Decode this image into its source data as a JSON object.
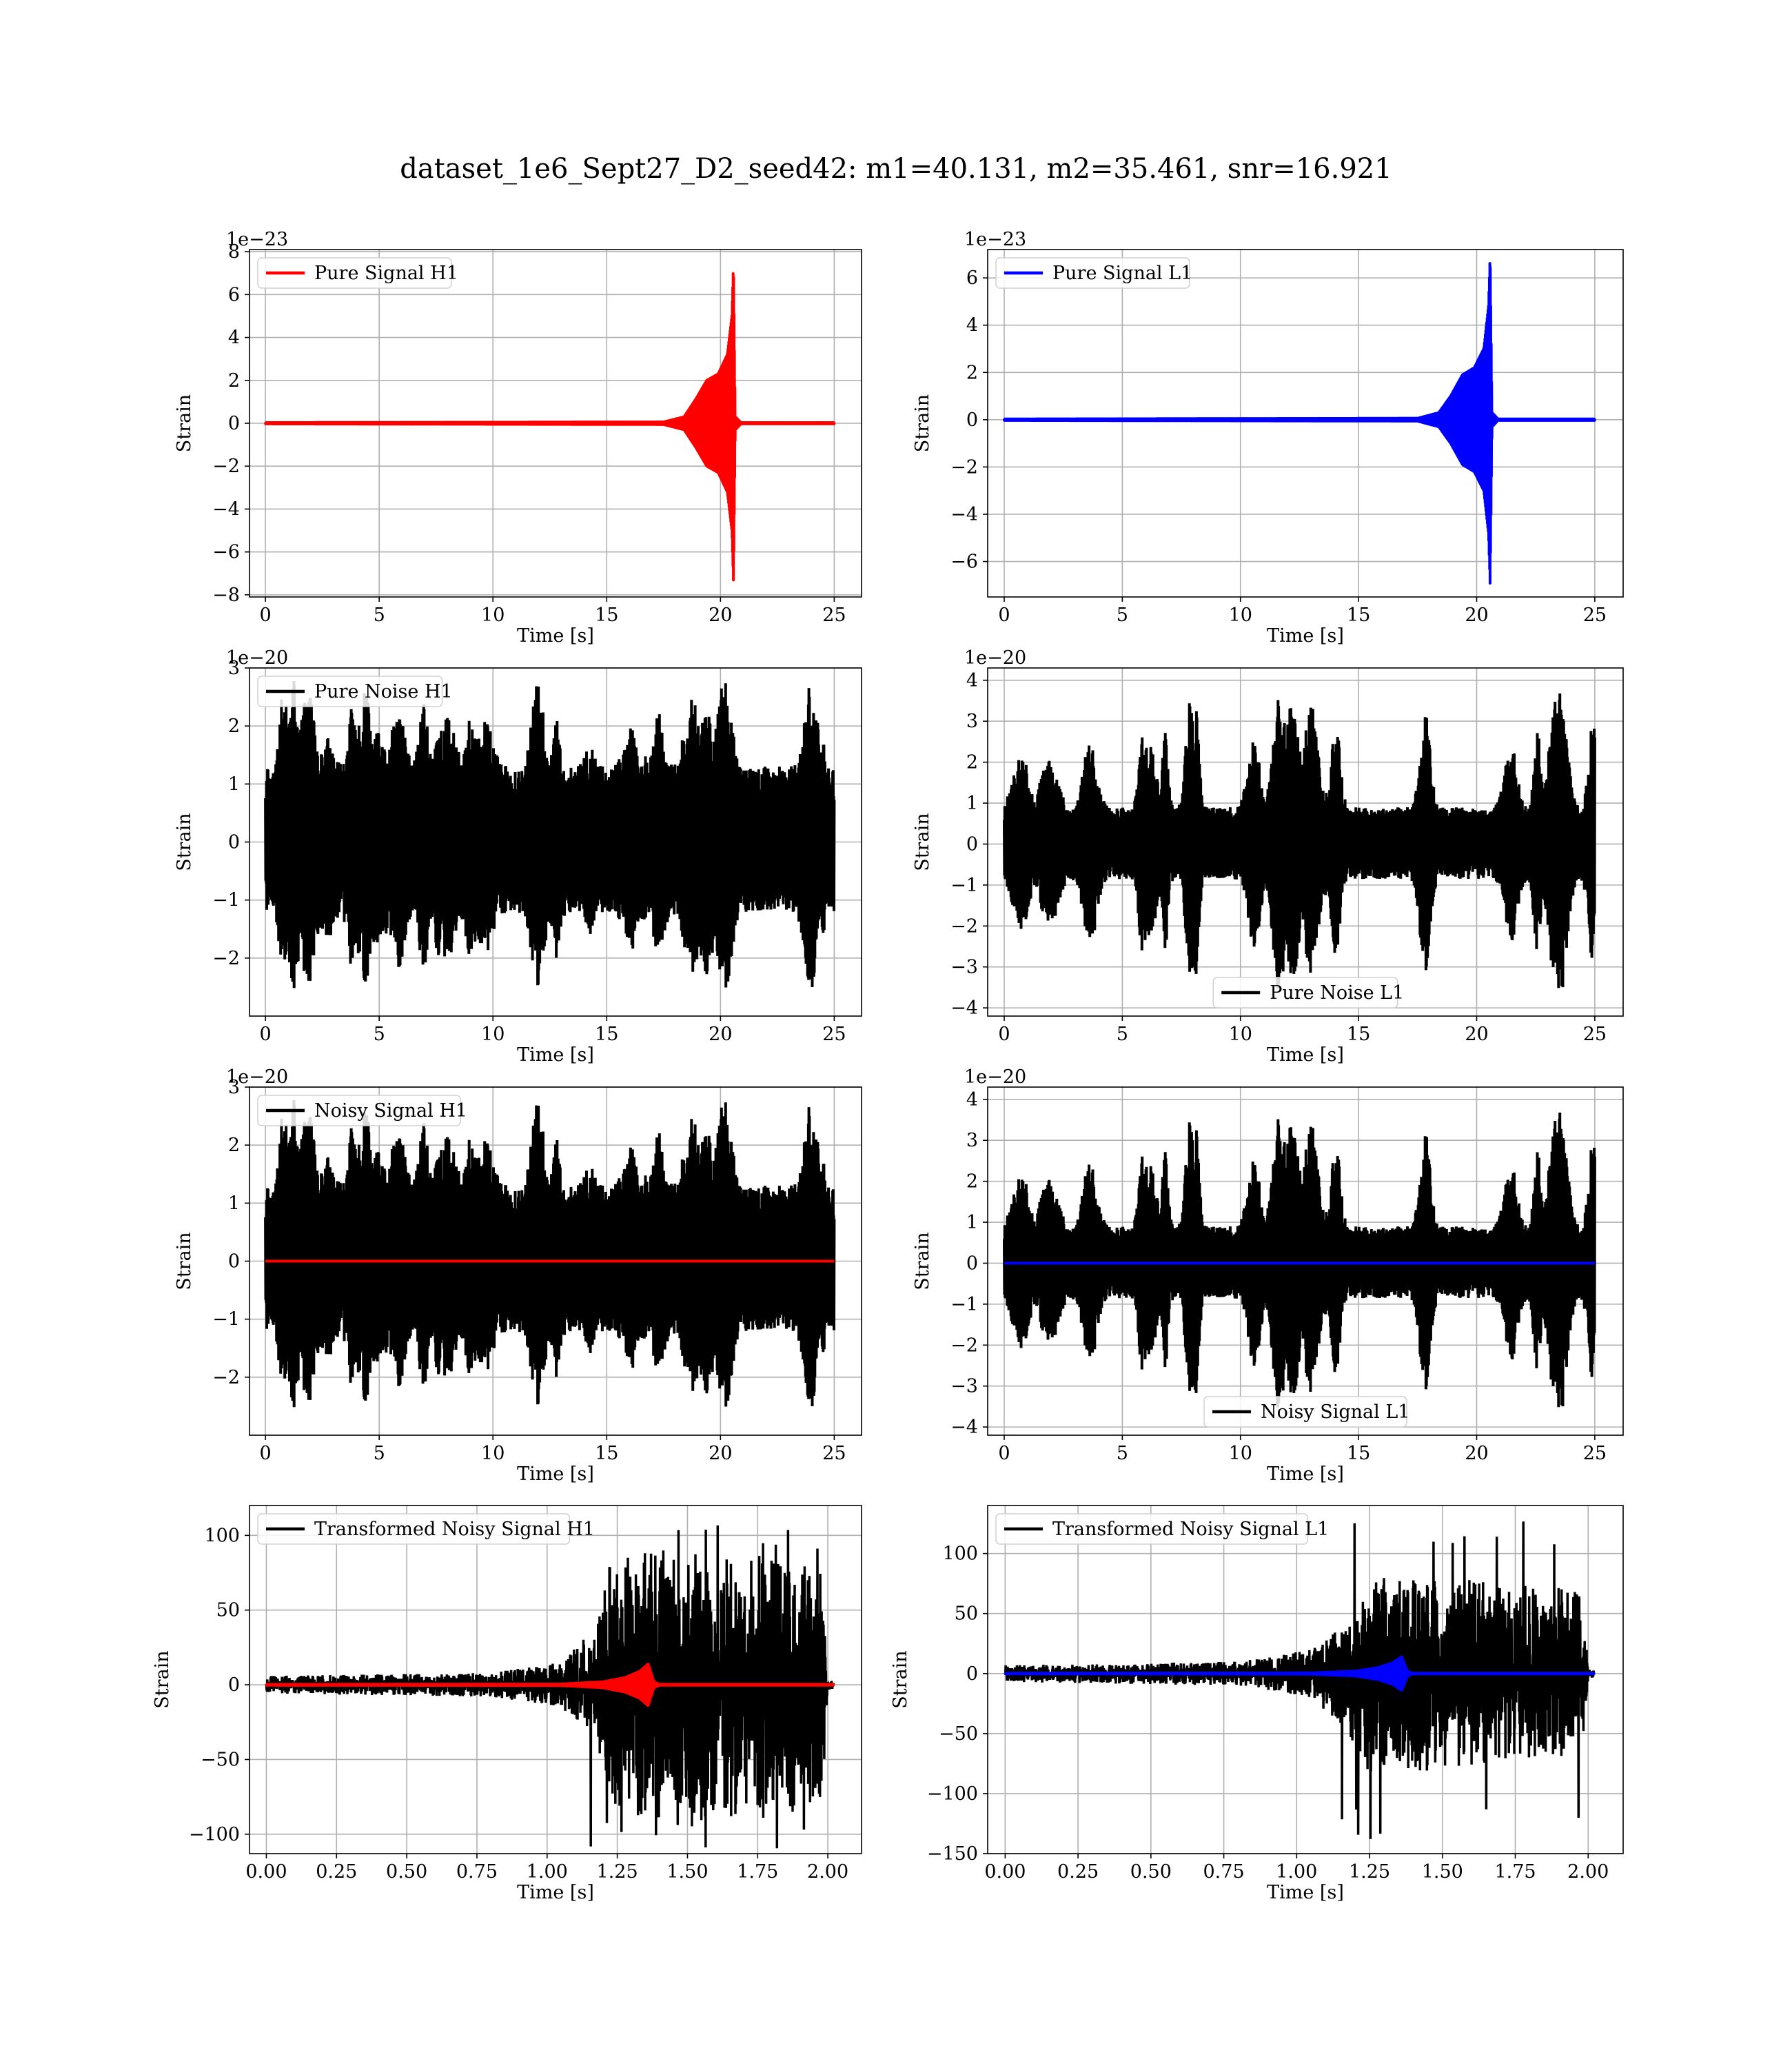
{
  "suptitle": "dataset_1e6_Sept27_D2_seed42: m1=40.131, m2=35.461, snr=16.921",
  "colors": {
    "signal_h1": "#ff0000",
    "signal_l1": "#0000ff",
    "noise": "#000000",
    "grid": "#b0b0b0"
  },
  "chart_data": [
    {
      "type": "line",
      "panel": "Pure Signal H1",
      "xlabel": "Time [s]",
      "ylabel": "Strain",
      "offset_text": "1e−23",
      "xlim": [
        -0.7,
        26.2
      ],
      "ylim": [
        -8.1,
        8.1
      ],
      "xticks": [
        0,
        5,
        10,
        15,
        20,
        25
      ],
      "xtick_labels": [
        "0",
        "5",
        "10",
        "15",
        "20",
        "25"
      ],
      "yticks": [
        -8,
        -6,
        -4,
        -2,
        0,
        2,
        4,
        6,
        8
      ],
      "ytick_labels": [
        "−8",
        "−6",
        "−4",
        "−2",
        "0",
        "2",
        "4",
        "6",
        "8"
      ],
      "legend": {
        "label": "Pure Signal H1",
        "position": "upper left"
      },
      "series": [
        {
          "name": "Pure Signal H1",
          "color": "#ff0000",
          "kind": "chirp",
          "envelope": [
            [
              0,
              0.03
            ],
            [
              17.5,
              0.06
            ],
            [
              18.4,
              0.3
            ],
            [
              18.9,
              1.1
            ],
            [
              19.4,
              2.0
            ],
            [
              19.9,
              2.3
            ],
            [
              20.3,
              3.2
            ],
            [
              20.5,
              5.0
            ],
            [
              20.57,
              7.4
            ],
            [
              20.65,
              0.3
            ],
            [
              20.9,
              0.03
            ],
            [
              25,
              0.03
            ]
          ],
          "x_range": [
            0,
            25
          ]
        }
      ]
    },
    {
      "type": "line",
      "panel": "Pure Signal L1",
      "xlabel": "Time [s]",
      "ylabel": "Strain",
      "offset_text": "1e−23",
      "xlim": [
        -0.7,
        26.2
      ],
      "ylim": [
        -7.5,
        7.2
      ],
      "xticks": [
        0,
        5,
        10,
        15,
        20,
        25
      ],
      "xtick_labels": [
        "0",
        "5",
        "10",
        "15",
        "20",
        "25"
      ],
      "yticks": [
        -6,
        -4,
        -2,
        0,
        2,
        4,
        6
      ],
      "ytick_labels": [
        "−6",
        "−4",
        "−2",
        "0",
        "2",
        "4",
        "6"
      ],
      "legend": {
        "label": "Pure Signal L1",
        "position": "upper left"
      },
      "series": [
        {
          "name": "Pure Signal L1",
          "color": "#0000ff",
          "kind": "chirp",
          "envelope": [
            [
              0,
              0.03
            ],
            [
              17.5,
              0.06
            ],
            [
              18.4,
              0.3
            ],
            [
              18.9,
              1.0
            ],
            [
              19.4,
              1.9
            ],
            [
              19.9,
              2.2
            ],
            [
              20.3,
              3.0
            ],
            [
              20.5,
              4.8
            ],
            [
              20.57,
              7.0
            ],
            [
              20.65,
              0.3
            ],
            [
              20.9,
              0.03
            ],
            [
              25,
              0.03
            ]
          ],
          "x_range": [
            0,
            25
          ]
        }
      ]
    },
    {
      "type": "line",
      "panel": "Pure Noise H1",
      "xlabel": "Time [s]",
      "ylabel": "Strain",
      "offset_text": "1e−20",
      "xlim": [
        -0.7,
        26.2
      ],
      "ylim": [
        -3.0,
        3.0
      ],
      "xticks": [
        0,
        5,
        10,
        15,
        20,
        25
      ],
      "xtick_labels": [
        "0",
        "5",
        "10",
        "15",
        "20",
        "25"
      ],
      "yticks": [
        -2,
        -1,
        0,
        1,
        2,
        3
      ],
      "ytick_labels": [
        "−2",
        "−1",
        "0",
        "1",
        "2",
        "3"
      ],
      "legend": {
        "label": "Pure Noise H1",
        "position": "upper left"
      },
      "series": [
        {
          "name": "Pure Noise H1",
          "color": "#000000",
          "kind": "noise",
          "base": 1.3,
          "peak_max": 2.9,
          "trough_min": -2.7,
          "bursts": 40,
          "x_range": [
            0,
            25
          ],
          "seed": 11
        }
      ]
    },
    {
      "type": "line",
      "panel": "Pure Noise L1",
      "xlabel": "Time [s]",
      "ylabel": "Strain",
      "offset_text": "1e−20",
      "xlim": [
        -0.7,
        26.2
      ],
      "ylim": [
        -4.2,
        4.3
      ],
      "xticks": [
        0,
        5,
        10,
        15,
        20,
        25
      ],
      "xtick_labels": [
        "0",
        "5",
        "10",
        "15",
        "20",
        "25"
      ],
      "yticks": [
        -4,
        -3,
        -2,
        -1,
        0,
        1,
        2,
        3,
        4
      ],
      "ytick_labels": [
        "−4",
        "−3",
        "−2",
        "−1",
        "0",
        "1",
        "2",
        "3",
        "4"
      ],
      "legend": {
        "label": "Pure Noise L1",
        "position": "lower center"
      },
      "series": [
        {
          "name": "Pure Noise L1",
          "color": "#000000",
          "kind": "noise",
          "base": 0.9,
          "peak_max": 4.0,
          "trough_min": -3.8,
          "bursts": 34,
          "x_range": [
            0,
            25
          ],
          "seed": 23
        }
      ]
    },
    {
      "type": "line",
      "panel": "Noisy Signal H1",
      "xlabel": "Time [s]",
      "ylabel": "Strain",
      "offset_text": "1e−20",
      "xlim": [
        -0.7,
        26.2
      ],
      "ylim": [
        -3.0,
        3.0
      ],
      "xticks": [
        0,
        5,
        10,
        15,
        20,
        25
      ],
      "xtick_labels": [
        "0",
        "5",
        "10",
        "15",
        "20",
        "25"
      ],
      "yticks": [
        -2,
        -1,
        0,
        1,
        2,
        3
      ],
      "ytick_labels": [
        "−2",
        "−1",
        "0",
        "1",
        "2",
        "3"
      ],
      "legend": {
        "label": "Noisy Signal H1",
        "position": "upper left"
      },
      "series": [
        {
          "name": "Noisy Signal H1",
          "color": "#000000",
          "kind": "noise",
          "base": 1.3,
          "peak_max": 2.9,
          "trough_min": -2.7,
          "bursts": 40,
          "x_range": [
            0,
            25
          ],
          "seed": 11
        },
        {
          "color": "#ff0000",
          "kind": "flat",
          "value": 0,
          "x_range": [
            0,
            25
          ]
        }
      ]
    },
    {
      "type": "line",
      "panel": "Noisy Signal L1",
      "xlabel": "Time [s]",
      "ylabel": "Strain",
      "offset_text": "1e−20",
      "xlim": [
        -0.7,
        26.2
      ],
      "ylim": [
        -4.2,
        4.3
      ],
      "xticks": [
        0,
        5,
        10,
        15,
        20,
        25
      ],
      "xtick_labels": [
        "0",
        "5",
        "10",
        "15",
        "20",
        "25"
      ],
      "yticks": [
        -4,
        -3,
        -2,
        -1,
        0,
        1,
        2,
        3,
        4
      ],
      "ytick_labels": [
        "−4",
        "−3",
        "−2",
        "−1",
        "0",
        "1",
        "2",
        "3",
        "4"
      ],
      "legend": {
        "label": "Noisy Signal L1",
        "position": "lower center"
      },
      "series": [
        {
          "name": "Noisy Signal L1",
          "color": "#000000",
          "kind": "noise",
          "base": 0.9,
          "peak_max": 4.0,
          "trough_min": -3.8,
          "bursts": 34,
          "x_range": [
            0,
            25
          ],
          "seed": 23
        },
        {
          "color": "#0000ff",
          "kind": "flat",
          "value": 0,
          "x_range": [
            0,
            25
          ]
        }
      ]
    },
    {
      "type": "line",
      "panel": "Transformed Noisy Signal H1",
      "xlabel": "Time [s]",
      "ylabel": "Strain",
      "offset_text": "",
      "xlim": [
        -0.06,
        2.12
      ],
      "ylim": [
        -113,
        120
      ],
      "xticks": [
        0,
        0.25,
        0.5,
        0.75,
        1.0,
        1.25,
        1.5,
        1.75,
        2.0
      ],
      "xtick_labels": [
        "0.00",
        "0.25",
        "0.50",
        "0.75",
        "1.00",
        "1.25",
        "1.50",
        "1.75",
        "2.00"
      ],
      "yticks": [
        -100,
        -50,
        0,
        50,
        100
      ],
      "ytick_labels": [
        "−100",
        "−50",
        "0",
        "50",
        "100"
      ],
      "legend": {
        "label": "Transformed Noisy Signal H1",
        "position": "upper left"
      },
      "series": [
        {
          "name": "Transformed Noisy Signal H1",
          "color": "#000000",
          "kind": "ramp-noise",
          "envelope": [
            [
              0,
              6
            ],
            [
              0.8,
              8
            ],
            [
              1.05,
              15
            ],
            [
              1.18,
              40
            ],
            [
              1.22,
              80
            ],
            [
              1.35,
              90
            ],
            [
              1.7,
              85
            ],
            [
              1.98,
              80
            ],
            [
              2.0,
              4
            ],
            [
              2.02,
              3
            ]
          ],
          "peak_max": 108,
          "trough_min": -110,
          "x_range": [
            0,
            2.02
          ],
          "seed": 5
        },
        {
          "color": "#ff0000",
          "kind": "chirp",
          "envelope": [
            [
              0,
              0.3
            ],
            [
              1.05,
              0.5
            ],
            [
              1.2,
              2
            ],
            [
              1.28,
              5
            ],
            [
              1.33,
              9
            ],
            [
              1.36,
              14
            ],
            [
              1.38,
              2
            ],
            [
              1.4,
              0.3
            ],
            [
              2.02,
              0.3
            ]
          ],
          "x_range": [
            0,
            2.02
          ]
        }
      ]
    },
    {
      "type": "line",
      "panel": "Transformed Noisy Signal L1",
      "xlabel": "Time [s]",
      "ylabel": "Strain",
      "offset_text": "",
      "xlim": [
        -0.06,
        2.12
      ],
      "ylim": [
        -150,
        140
      ],
      "xticks": [
        0,
        0.25,
        0.5,
        0.75,
        1.0,
        1.25,
        1.5,
        1.75,
        2.0
      ],
      "xtick_labels": [
        "0.00",
        "0.25",
        "0.50",
        "0.75",
        "1.00",
        "1.25",
        "1.50",
        "1.75",
        "2.00"
      ],
      "yticks": [
        -150,
        -100,
        -50,
        0,
        50,
        100
      ],
      "ytick_labels": [
        "−150",
        "−100",
        "−50",
        "0",
        "50",
        "100"
      ],
      "legend": {
        "label": "Transformed Noisy Signal L1",
        "position": "upper left"
      },
      "series": [
        {
          "name": "Transformed Noisy Signal L1",
          "color": "#000000",
          "kind": "ramp-noise",
          "envelope": [
            [
              0,
              7
            ],
            [
              0.8,
              10
            ],
            [
              1.05,
              20
            ],
            [
              1.18,
              50
            ],
            [
              1.22,
              80
            ],
            [
              1.35,
              85
            ],
            [
              1.7,
              75
            ],
            [
              1.98,
              70
            ],
            [
              2.0,
              4
            ],
            [
              2.02,
              3
            ]
          ],
          "peak_max": 136,
          "trough_min": -138,
          "x_range": [
            0,
            2.02
          ],
          "seed": 9
        },
        {
          "color": "#0000ff",
          "kind": "chirp",
          "envelope": [
            [
              0,
              0.3
            ],
            [
              1.05,
              0.5
            ],
            [
              1.2,
              2
            ],
            [
              1.28,
              5
            ],
            [
              1.33,
              9
            ],
            [
              1.36,
              14
            ],
            [
              1.38,
              2
            ],
            [
              1.4,
              0.3
            ],
            [
              2.02,
              0.3
            ]
          ],
          "x_range": [
            0,
            2.02
          ]
        }
      ]
    }
  ]
}
